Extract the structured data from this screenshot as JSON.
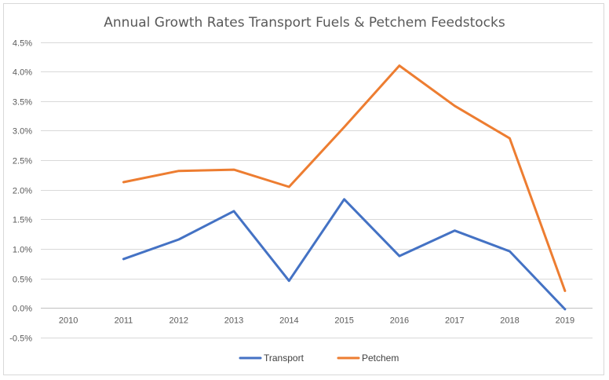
{
  "chart_data": {
    "type": "line",
    "title": "Annual Growth Rates Transport Fuels & Petchem Feedstocks",
    "xlabel": "",
    "ylabel": "",
    "categories": [
      "2010",
      "2011",
      "2012",
      "2013",
      "2014",
      "2015",
      "2016",
      "2017",
      "2018",
      "2019"
    ],
    "y_ticks": [
      -0.5,
      0.0,
      0.5,
      1.0,
      1.5,
      2.0,
      2.5,
      3.0,
      3.5,
      4.0,
      4.5
    ],
    "y_tick_labels": [
      "-0.5%",
      "0.0%",
      "0.5%",
      "1.0%",
      "1.5%",
      "2.0%",
      "2.5%",
      "3.0%",
      "3.5%",
      "4.0%",
      "4.5%"
    ],
    "ylim": [
      -0.5,
      4.5
    ],
    "grid": true,
    "legend_position": "bottom",
    "series": [
      {
        "name": "Transport",
        "color": "#4472C4",
        "values": [
          null,
          0.83,
          1.16,
          1.64,
          0.46,
          1.84,
          0.88,
          1.31,
          0.96,
          -0.02
        ]
      },
      {
        "name": "Petchem",
        "color": "#ED7D31",
        "values": [
          null,
          2.13,
          2.32,
          2.34,
          2.05,
          3.06,
          4.1,
          3.42,
          2.87,
          0.29
        ]
      }
    ]
  }
}
